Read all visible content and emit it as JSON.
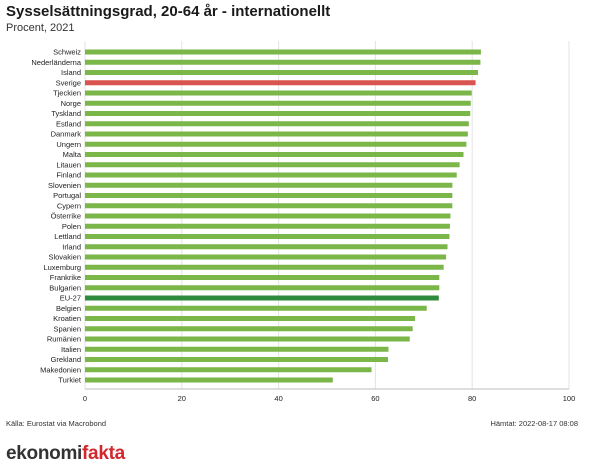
{
  "header": {
    "title": "Sysselsättningsgrad, 20-64 år - internationellt",
    "subtitle": "Procent, 2021"
  },
  "footer": {
    "source": "Källa: Eurostat via Macrobond",
    "fetched": "Hämtat: 2022-08-17 08:08"
  },
  "logo": {
    "text_part1": "ekonomi",
    "text_part2": "fakta",
    "accent_color": "#d3262e"
  },
  "colors": {
    "default_bar": "#7ab648",
    "highlight_sweden": "#d9534f",
    "highlight_eu": "#2e8b3e"
  },
  "chart_data": {
    "type": "bar",
    "orientation": "horizontal",
    "categories": [
      "Schweiz",
      "Nederländerna",
      "Island",
      "Sverige",
      "Tjeckien",
      "Norge",
      "Tyskland",
      "Estland",
      "Danmark",
      "Ungern",
      "Malta",
      "Litauen",
      "Finland",
      "Slovenien",
      "Portugal",
      "Cypern",
      "Österrike",
      "Polen",
      "Lettland",
      "Irland",
      "Slovakien",
      "Luxemburg",
      "Frankrike",
      "Bulgarien",
      "EU-27",
      "Belgien",
      "Kroatien",
      "Spanien",
      "Rumänien",
      "Italien",
      "Grekland",
      "Makedonien",
      "Turkiet"
    ],
    "values": [
      81.8,
      81.7,
      81.2,
      80.7,
      79.9,
      79.7,
      79.6,
      79.3,
      79.1,
      78.8,
      78.2,
      77.4,
      76.8,
      75.9,
      75.9,
      75.9,
      75.5,
      75.4,
      75.3,
      74.9,
      74.6,
      74.1,
      73.2,
      73.2,
      73.1,
      70.6,
      68.2,
      67.7,
      67.1,
      62.7,
      62.6,
      59.2,
      51.2
    ],
    "highlight": {
      "Sverige": "#d9534f",
      "EU-27": "#2e8b3e"
    },
    "xlim": [
      0,
      100
    ],
    "xticks": [
      0,
      20,
      40,
      60,
      80,
      100
    ],
    "grid": true
  }
}
